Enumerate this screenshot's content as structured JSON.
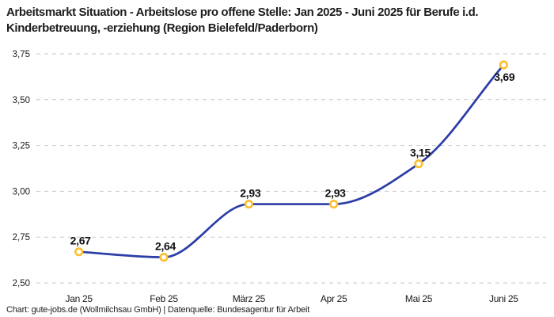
{
  "title": "Arbeitsmarkt Situation - Arbeitslose pro offene Stelle: Jan 2025 - Juni 2025 für Berufe i.d. Kinderbetreuung, -erziehung (Region Bielefeld/Paderborn)",
  "footer": "Chart: gute-jobs.de (Wollmilchsau GmbH) | Datenquelle: Bundesagentur für Arbeit",
  "chart_data": {
    "type": "line",
    "title": "Arbeitsmarkt Situation - Arbeitslose pro offene Stelle: Jan 2025 - Juni 2025 für Berufe i.d. Kinderbetreuung, -erziehung (Region Bielefeld/Paderborn)",
    "source_note": "Chart: gute-jobs.de (Wollmilchsau GmbH) | Datenquelle: Bundesagentur für Arbeit",
    "categories": [
      "Jan 25",
      "Feb 25",
      "März 25",
      "Apr 25",
      "Mai 25",
      "Juni 25"
    ],
    "series": [
      {
        "name": "Arbeitslose pro offene Stelle",
        "values": [
          2.67,
          2.64,
          2.93,
          2.93,
          3.15,
          3.69
        ],
        "data_labels": [
          "2,67",
          "2,64",
          "2,93",
          "2,93",
          "3,15",
          "3,69"
        ],
        "label_positions": [
          "above",
          "above",
          "above",
          "above",
          "above",
          "below"
        ]
      }
    ],
    "xlabel": "",
    "ylabel": "",
    "ylim": [
      2.5,
      3.75
    ],
    "y_tick_step": 0.25,
    "y_tick_labels": [
      "2,50",
      "2,75",
      "3,00",
      "3,25",
      "3,50",
      "3,75"
    ],
    "decimal_separator": ",",
    "grid": "horizontal-dashed",
    "legend": "none",
    "colors": {
      "line": "#2b3da6",
      "marker_ring": "#fbbf2d",
      "marker_fill": "#ffffff",
      "gridline": "#c9c9c9",
      "tick_text": "#1a1a1a",
      "data_label_text": "#111111"
    }
  }
}
